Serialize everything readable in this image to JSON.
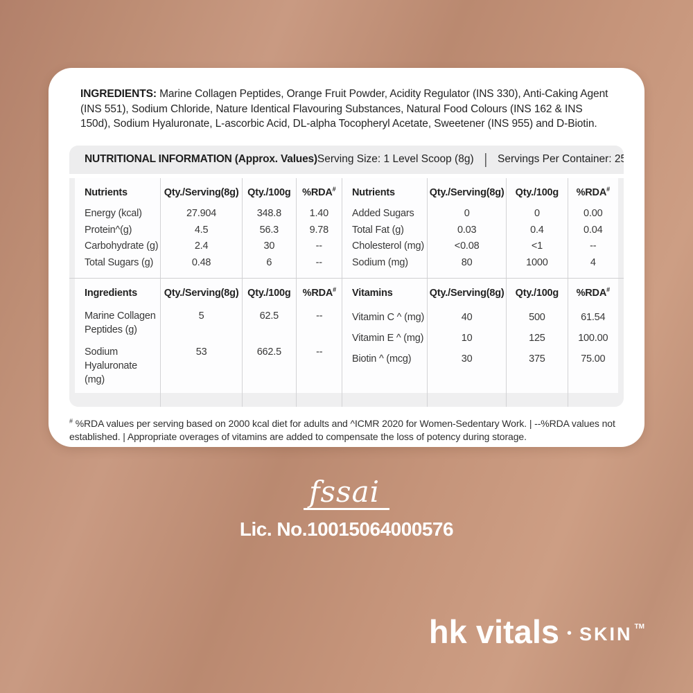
{
  "ingredients": {
    "label": "INGREDIENTS:",
    "text": " Marine Collagen Peptides, Orange Fruit Powder, Acidity Regulator (INS 330), Anti-Caking Agent (INS 551), Sodium Chloride, Nature Identical Flavouring Substances, Natural Food Colours (INS 162 & INS 150d), Sodium Hyaluronate, L-ascorbic Acid, DL-alpha Tocopheryl  Acetate, Sweetener (INS 955) and D-Biotin."
  },
  "nutrition": {
    "title": "NUTRITIONAL INFORMATION (Approx. Values)",
    "serving_size": "Serving Size: 1 Level Scoop (8g)",
    "divider": "|",
    "servings": "Servings Per Container: 25",
    "sup_hash": "#",
    "block1": {
      "headers": [
        "Nutrients",
        "Qty./Serving(8g)",
        "Qty./100g",
        "%RDA",
        "Nutrients",
        "Qty./Serving(8g)",
        "Qty./100g",
        "%RDA"
      ],
      "rows": [
        [
          "Energy (kcal)",
          "27.904",
          "348.8",
          "1.40",
          "Added Sugars",
          "0",
          "0",
          "0.00"
        ],
        [
          "Protein^(g)",
          "4.5",
          "56.3",
          "9.78",
          "Total Fat (g)",
          "0.03",
          "0.4",
          "0.04"
        ],
        [
          "Carbohydrate (g)",
          "2.4",
          "30",
          "--",
          "Cholesterol (mg)",
          "<0.08",
          "<1",
          "--"
        ],
        [
          "Total Sugars (g)",
          "0.48",
          "6",
          "--",
          "Sodium (mg)",
          "80",
          "1000",
          "4"
        ]
      ]
    },
    "block2": {
      "left_header": [
        "Ingredients",
        "Qty./Serving(8g)",
        "Qty./100g",
        "%RDA"
      ],
      "left_rows": [
        [
          "Marine Collagen Peptides (g)",
          "5",
          "62.5",
          "--"
        ],
        [
          "Sodium Hyaluronate (mg)",
          "53",
          "662.5",
          "--"
        ]
      ],
      "right_header": [
        "Vitamins",
        "Qty./Serving(8g)",
        "Qty./100g",
        "%RDA"
      ],
      "right_rows": [
        [
          "Vitamin C ^ (mg)",
          "40",
          "500",
          "61.54"
        ],
        [
          "Vitamin E ^ (mg)",
          "10",
          "125",
          "100.00"
        ],
        [
          "Biotin ^ (mcg)",
          "30",
          "375",
          "75.00"
        ]
      ]
    }
  },
  "footnote": {
    "sup": "#",
    "text": " %RDA values per serving based on 2000 kcal diet for adults and ^ICMR 2020 for Women-Sedentary Work.  |  --%RDA values not established. |  Appropriate overages of vitamins are added to compensate the loss of potency during storage."
  },
  "fssai": {
    "logo_text": "fssai",
    "license": "Lic. No.10015064000576"
  },
  "brand": {
    "name": "hk vitals",
    "separator": "•",
    "sub": "SKIN",
    "tm": "TM"
  },
  "colors": {
    "background_copper": "#c5947a",
    "card_white": "#ffffff",
    "panel_gray": "#efeff0",
    "line_gray": "#d3d3d5",
    "text_dark": "#242424",
    "brand_white": "#ffffff"
  }
}
